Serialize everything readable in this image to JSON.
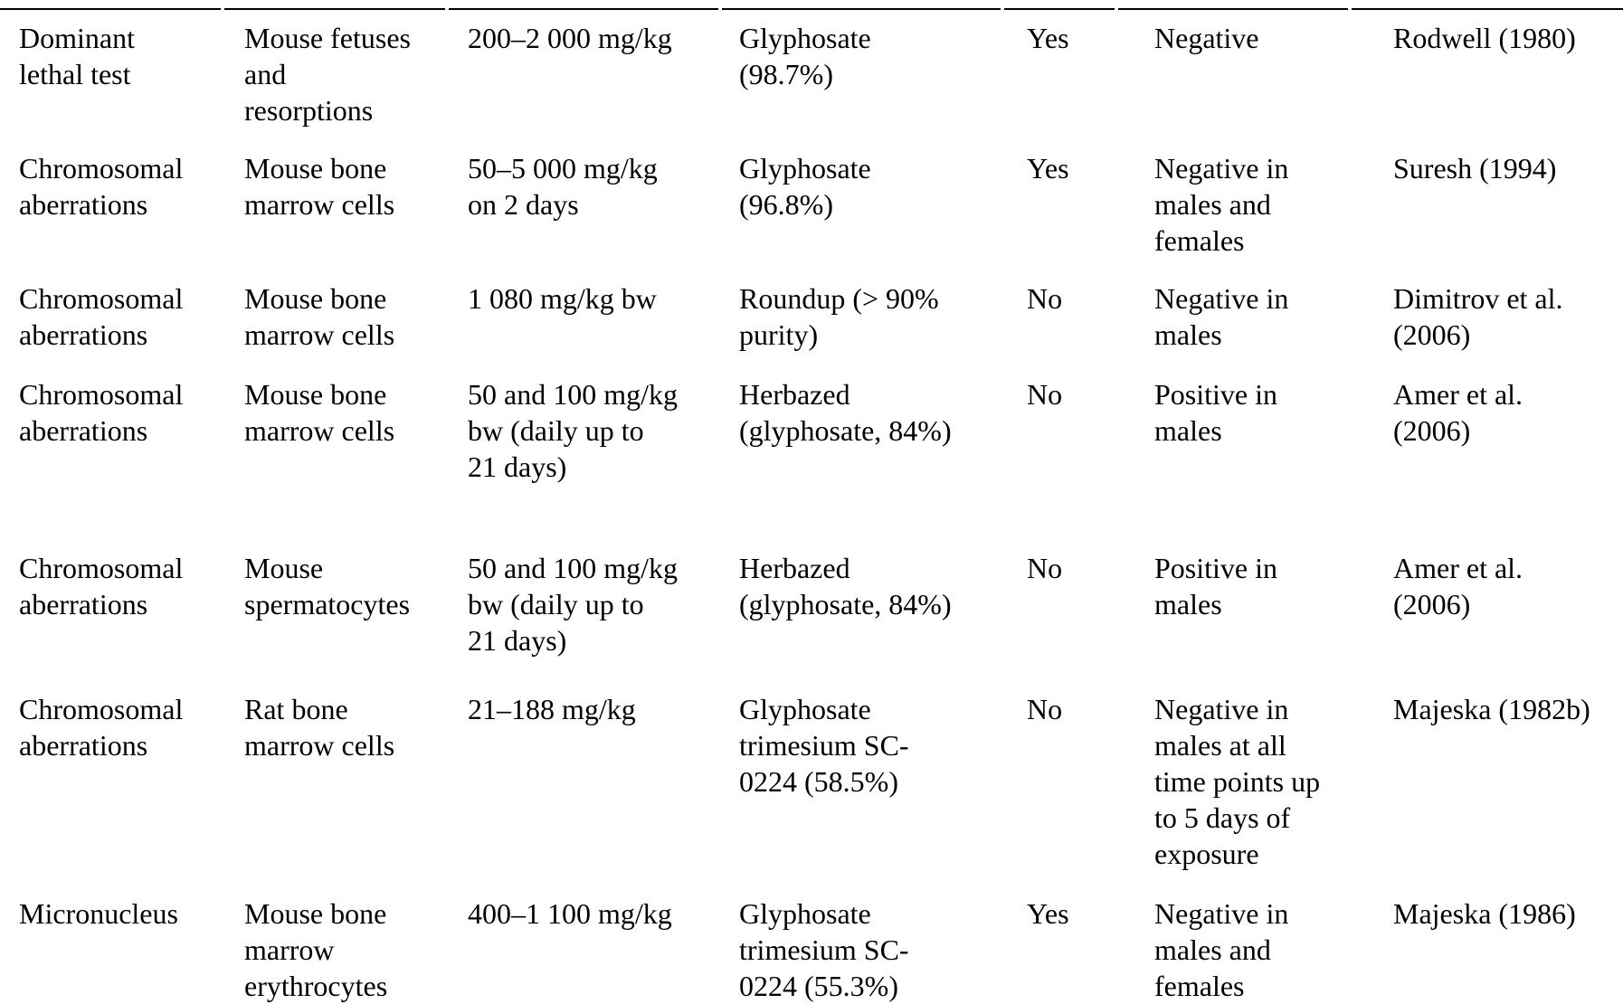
{
  "table": {
    "rows": [
      {
        "test": [
          "Dominant",
          "lethal test"
        ],
        "test_object": [
          "Mouse fetuses",
          "and",
          "resorptions"
        ],
        "dose": [
          "200–2 000 mg/kg"
        ],
        "substance": [
          "Glyphosate",
          "(98.7%)"
        ],
        "glp": [
          "Yes"
        ],
        "result": [
          "Negative"
        ],
        "reference": [
          "Rodwell (1980)"
        ]
      },
      {
        "test": [
          "Chromosomal",
          "aberrations"
        ],
        "test_object": [
          "Mouse bone",
          "marrow cells"
        ],
        "dose": [
          "50–5 000 mg/kg",
          "on 2 days"
        ],
        "substance": [
          "Glyphosate",
          "(96.8%)"
        ],
        "glp": [
          "Yes"
        ],
        "result": [
          "Negative in",
          "males and",
          "females"
        ],
        "reference": [
          "Suresh (1994)"
        ]
      },
      {
        "test": [
          "Chromosomal",
          "aberrations"
        ],
        "test_object": [
          "Mouse bone",
          "marrow cells"
        ],
        "dose": [
          "1 080 mg/kg bw"
        ],
        "substance": [
          "Roundup (> 90%",
          "purity)"
        ],
        "glp": [
          "No"
        ],
        "result": [
          "Negative in",
          "males"
        ],
        "reference": [
          "Dimitrov et al.",
          "(2006)"
        ]
      },
      {
        "test": [
          "Chromosomal",
          "aberrations"
        ],
        "test_object": [
          "Mouse bone",
          "marrow cells"
        ],
        "dose": [
          "50 and 100 mg/kg",
          "bw (daily up to",
          "21 days)"
        ],
        "substance": [
          "Herbazed",
          "(glyphosate, 84%)"
        ],
        "glp": [
          "No"
        ],
        "result": [
          "Positive in",
          "males"
        ],
        "reference": [
          "Amer et al.",
          "(2006)"
        ]
      },
      {
        "test": [
          "Chromosomal",
          "aberrations"
        ],
        "test_object": [
          "Mouse",
          "spermatocytes"
        ],
        "dose": [
          "50 and 100 mg/kg",
          "bw (daily up to",
          "21 days)"
        ],
        "substance": [
          "Herbazed",
          "(glyphosate, 84%)"
        ],
        "glp": [
          "No"
        ],
        "result": [
          "Positive in",
          "males"
        ],
        "reference": [
          "Amer et al.",
          "(2006)"
        ]
      },
      {
        "test": [
          "Chromosomal",
          "aberrations"
        ],
        "test_object": [
          "Rat bone",
          "marrow cells"
        ],
        "dose": [
          "21–188 mg/kg"
        ],
        "substance": [
          "Glyphosate",
          "trimesium SC-",
          "0224 (58.5%)"
        ],
        "glp": [
          "No"
        ],
        "result": [
          "Negative in",
          "males at all",
          "time points up",
          "to 5 days of",
          "exposure"
        ],
        "reference": [
          "Majeska (1982b)"
        ]
      },
      {
        "test": [
          "Micronucleus"
        ],
        "test_object": [
          "Mouse bone",
          "marrow",
          "erythrocytes"
        ],
        "dose": [
          "400–1 100 mg/kg"
        ],
        "substance": [
          "Glyphosate",
          "trimesium SC-",
          "0224 (55.3%)"
        ],
        "glp": [
          "Yes"
        ],
        "result": [
          "Negative in",
          "males and",
          "females"
        ],
        "reference": [
          "Majeska (1986)"
        ]
      }
    ]
  }
}
